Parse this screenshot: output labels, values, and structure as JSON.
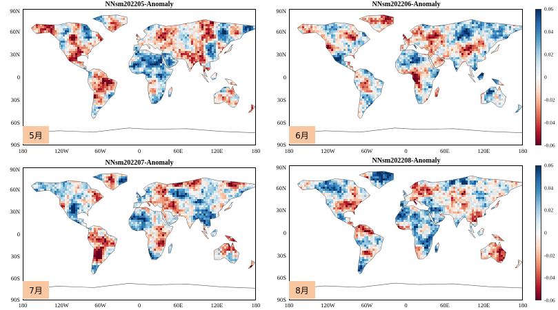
{
  "panels": [
    {
      "title": "NNsm202205-Anomaly",
      "month": "5月",
      "seed": 5
    },
    {
      "title": "NNsm202206-Anomaly",
      "month": "6月",
      "seed": 6
    },
    {
      "title": "NNsm202207-Anomaly",
      "month": "7月",
      "seed": 7
    },
    {
      "title": "NNsm202208-Anomaly",
      "month": "8月",
      "seed": 8
    }
  ],
  "lat_labels": [
    "90N",
    "60N",
    "30N",
    "0",
    "30S",
    "60S",
    "90S"
  ],
  "lon_labels": [
    "180",
    "120W",
    "60W",
    "0",
    "60E",
    "120E",
    "180"
  ],
  "colorbar": {
    "ticks": [
      "0.06",
      "0.04",
      "0.02",
      "0",
      "-0.02",
      "-0.04",
      "-0.06"
    ],
    "min": -0.06,
    "max": 0.06
  },
  "colors": {
    "negative": "#67001f",
    "neutral": "#f7f7f7",
    "positive": "#053061",
    "month_box": "#f9c8a2"
  }
}
